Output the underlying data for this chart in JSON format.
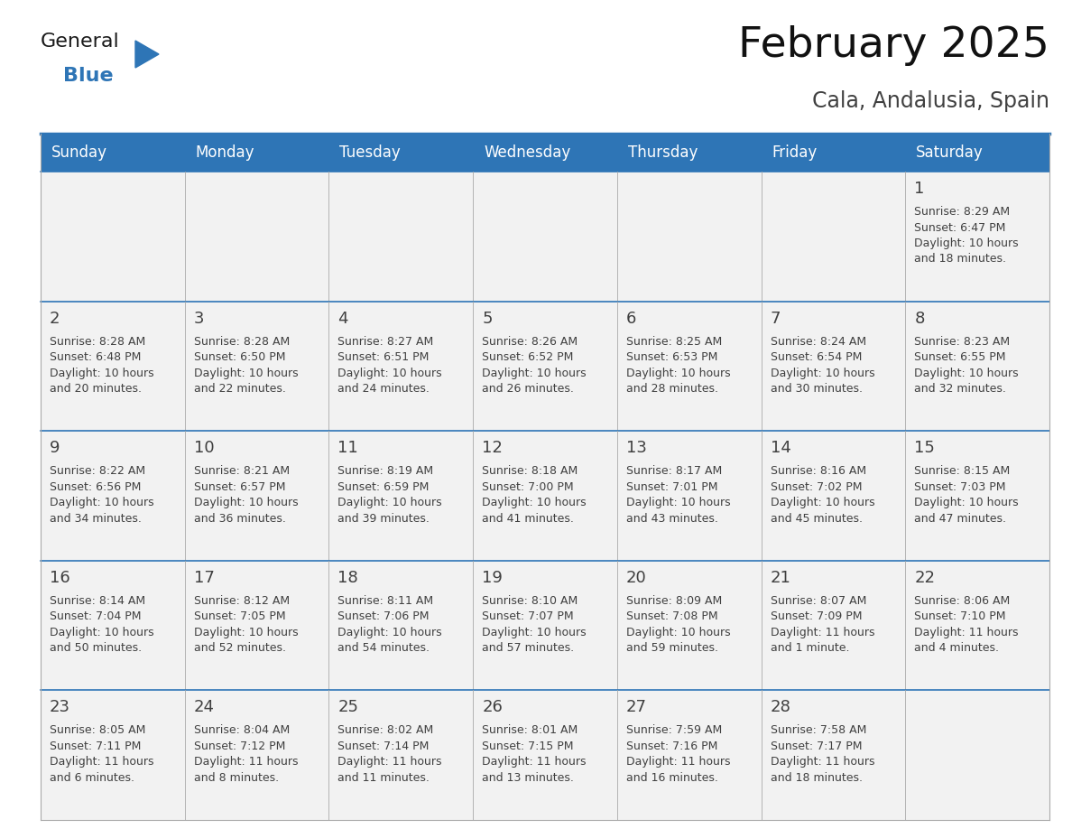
{
  "title": "February 2025",
  "subtitle": "Cala, Andalusia, Spain",
  "header_bg": "#2E75B6",
  "header_text_color": "#FFFFFF",
  "cell_bg": "#FFFFFF",
  "cell_alt_bg": "#F2F2F2",
  "cell_text_color": "#404040",
  "day_number_color": "#404040",
  "border_color": "#2E75B6",
  "inner_border_color": "#AAAAAA",
  "days_of_week": [
    "Sunday",
    "Monday",
    "Tuesday",
    "Wednesday",
    "Thursday",
    "Friday",
    "Saturday"
  ],
  "calendar_data": [
    [
      null,
      null,
      null,
      null,
      null,
      null,
      {
        "day": 1,
        "sunrise": "8:29 AM",
        "sunset": "6:47 PM",
        "daylight_l1": "Daylight: 10 hours",
        "daylight_l2": "and 18 minutes."
      }
    ],
    [
      {
        "day": 2,
        "sunrise": "8:28 AM",
        "sunset": "6:48 PM",
        "daylight_l1": "Daylight: 10 hours",
        "daylight_l2": "and 20 minutes."
      },
      {
        "day": 3,
        "sunrise": "8:28 AM",
        "sunset": "6:50 PM",
        "daylight_l1": "Daylight: 10 hours",
        "daylight_l2": "and 22 minutes."
      },
      {
        "day": 4,
        "sunrise": "8:27 AM",
        "sunset": "6:51 PM",
        "daylight_l1": "Daylight: 10 hours",
        "daylight_l2": "and 24 minutes."
      },
      {
        "day": 5,
        "sunrise": "8:26 AM",
        "sunset": "6:52 PM",
        "daylight_l1": "Daylight: 10 hours",
        "daylight_l2": "and 26 minutes."
      },
      {
        "day": 6,
        "sunrise": "8:25 AM",
        "sunset": "6:53 PM",
        "daylight_l1": "Daylight: 10 hours",
        "daylight_l2": "and 28 minutes."
      },
      {
        "day": 7,
        "sunrise": "8:24 AM",
        "sunset": "6:54 PM",
        "daylight_l1": "Daylight: 10 hours",
        "daylight_l2": "and 30 minutes."
      },
      {
        "day": 8,
        "sunrise": "8:23 AM",
        "sunset": "6:55 PM",
        "daylight_l1": "Daylight: 10 hours",
        "daylight_l2": "and 32 minutes."
      }
    ],
    [
      {
        "day": 9,
        "sunrise": "8:22 AM",
        "sunset": "6:56 PM",
        "daylight_l1": "Daylight: 10 hours",
        "daylight_l2": "and 34 minutes."
      },
      {
        "day": 10,
        "sunrise": "8:21 AM",
        "sunset": "6:57 PM",
        "daylight_l1": "Daylight: 10 hours",
        "daylight_l2": "and 36 minutes."
      },
      {
        "day": 11,
        "sunrise": "8:19 AM",
        "sunset": "6:59 PM",
        "daylight_l1": "Daylight: 10 hours",
        "daylight_l2": "and 39 minutes."
      },
      {
        "day": 12,
        "sunrise": "8:18 AM",
        "sunset": "7:00 PM",
        "daylight_l1": "Daylight: 10 hours",
        "daylight_l2": "and 41 minutes."
      },
      {
        "day": 13,
        "sunrise": "8:17 AM",
        "sunset": "7:01 PM",
        "daylight_l1": "Daylight: 10 hours",
        "daylight_l2": "and 43 minutes."
      },
      {
        "day": 14,
        "sunrise": "8:16 AM",
        "sunset": "7:02 PM",
        "daylight_l1": "Daylight: 10 hours",
        "daylight_l2": "and 45 minutes."
      },
      {
        "day": 15,
        "sunrise": "8:15 AM",
        "sunset": "7:03 PM",
        "daylight_l1": "Daylight: 10 hours",
        "daylight_l2": "and 47 minutes."
      }
    ],
    [
      {
        "day": 16,
        "sunrise": "8:14 AM",
        "sunset": "7:04 PM",
        "daylight_l1": "Daylight: 10 hours",
        "daylight_l2": "and 50 minutes."
      },
      {
        "day": 17,
        "sunrise": "8:12 AM",
        "sunset": "7:05 PM",
        "daylight_l1": "Daylight: 10 hours",
        "daylight_l2": "and 52 minutes."
      },
      {
        "day": 18,
        "sunrise": "8:11 AM",
        "sunset": "7:06 PM",
        "daylight_l1": "Daylight: 10 hours",
        "daylight_l2": "and 54 minutes."
      },
      {
        "day": 19,
        "sunrise": "8:10 AM",
        "sunset": "7:07 PM",
        "daylight_l1": "Daylight: 10 hours",
        "daylight_l2": "and 57 minutes."
      },
      {
        "day": 20,
        "sunrise": "8:09 AM",
        "sunset": "7:08 PM",
        "daylight_l1": "Daylight: 10 hours",
        "daylight_l2": "and 59 minutes."
      },
      {
        "day": 21,
        "sunrise": "8:07 AM",
        "sunset": "7:09 PM",
        "daylight_l1": "Daylight: 11 hours",
        "daylight_l2": "and 1 minute."
      },
      {
        "day": 22,
        "sunrise": "8:06 AM",
        "sunset": "7:10 PM",
        "daylight_l1": "Daylight: 11 hours",
        "daylight_l2": "and 4 minutes."
      }
    ],
    [
      {
        "day": 23,
        "sunrise": "8:05 AM",
        "sunset": "7:11 PM",
        "daylight_l1": "Daylight: 11 hours",
        "daylight_l2": "and 6 minutes."
      },
      {
        "day": 24,
        "sunrise": "8:04 AM",
        "sunset": "7:12 PM",
        "daylight_l1": "Daylight: 11 hours",
        "daylight_l2": "and 8 minutes."
      },
      {
        "day": 25,
        "sunrise": "8:02 AM",
        "sunset": "7:14 PM",
        "daylight_l1": "Daylight: 11 hours",
        "daylight_l2": "and 11 minutes."
      },
      {
        "day": 26,
        "sunrise": "8:01 AM",
        "sunset": "7:15 PM",
        "daylight_l1": "Daylight: 11 hours",
        "daylight_l2": "and 13 minutes."
      },
      {
        "day": 27,
        "sunrise": "7:59 AM",
        "sunset": "7:16 PM",
        "daylight_l1": "Daylight: 11 hours",
        "daylight_l2": "and 16 minutes."
      },
      {
        "day": 28,
        "sunrise": "7:58 AM",
        "sunset": "7:17 PM",
        "daylight_l1": "Daylight: 11 hours",
        "daylight_l2": "and 18 minutes."
      },
      null
    ]
  ],
  "logo_general_color": "#1a1a1a",
  "logo_blue_color": "#2E75B6",
  "logo_triangle_color": "#2E75B6",
  "title_fontsize": 34,
  "subtitle_fontsize": 17,
  "header_fontsize": 12,
  "day_number_fontsize": 13,
  "cell_text_fontsize": 9
}
